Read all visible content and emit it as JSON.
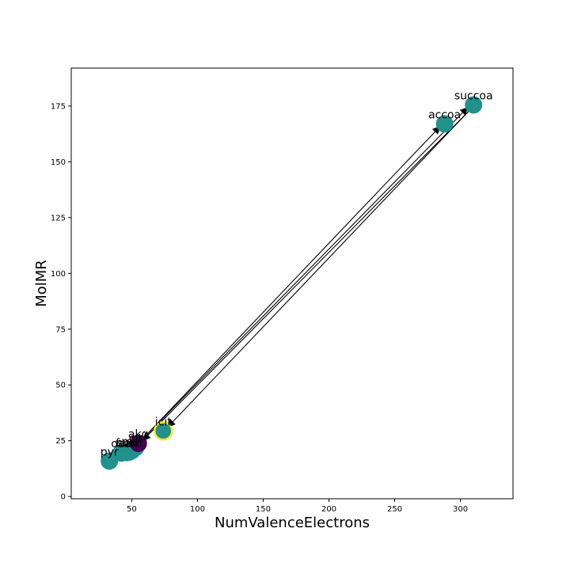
{
  "chart_data": {
    "type": "scatter",
    "xlabel": "NumValenceElectrons",
    "ylabel": "MolMR",
    "xlim": [
      4,
      340
    ],
    "ylim": [
      -1,
      192
    ],
    "xticks": [
      50,
      100,
      150,
      200,
      250,
      300
    ],
    "yticks": [
      0,
      25,
      50,
      75,
      100,
      125,
      150,
      175
    ],
    "grid": false,
    "points": [
      {
        "label": "pyr",
        "x": 33,
        "y": 15.9,
        "color": "#21918c"
      },
      {
        "label": "oaa",
        "x": 42,
        "y": 19.5,
        "color": "#21918c"
      },
      {
        "label": "fum",
        "x": 46,
        "y": 19.7,
        "color": "#21918c"
      },
      {
        "label": "succ",
        "x": 48,
        "y": 19.9,
        "color": "#21918c"
      },
      {
        "label": "mal",
        "x": 50,
        "y": 20.5,
        "color": "#21918c"
      },
      {
        "label": "cit",
        "x": 53,
        "y": 22.0,
        "color": "#21918c"
      },
      {
        "label": "akg",
        "x": 55,
        "y": 23.8,
        "color": "#440154"
      },
      {
        "label": "icit",
        "x": 74,
        "y": 29.4,
        "color": "#21918c",
        "highlight": "#fde725"
      },
      {
        "label": "accoa",
        "x": 288,
        "y": 167,
        "color": "#21918c"
      },
      {
        "label": "succoa",
        "x": 310,
        "y": 175.5,
        "color": "#21918c"
      }
    ],
    "arrows": [
      {
        "from": [
          55,
          23.8
        ],
        "to": [
          284,
          165.5
        ]
      },
      {
        "from": [
          55,
          23.8
        ],
        "to": [
          305,
          174
        ]
      },
      {
        "from": [
          306,
          172.5
        ],
        "to": [
          78,
          31.5
        ]
      },
      {
        "from": [
          306,
          172.5
        ],
        "to": [
          59,
          25.5
        ]
      }
    ]
  }
}
